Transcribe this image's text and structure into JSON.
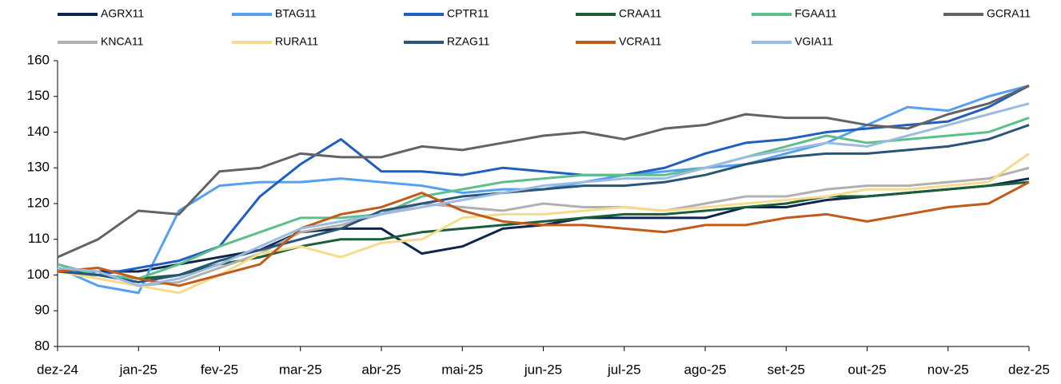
{
  "chart_data": {
    "type": "line",
    "x": [
      0,
      0.5,
      1,
      1.5,
      2,
      2.5,
      3,
      3.5,
      4,
      4.5,
      5,
      5.5,
      6,
      6.5,
      7,
      7.5,
      8,
      8.5,
      9,
      9.5,
      10,
      10.5,
      11,
      11.5,
      12
    ],
    "xlim": [
      0,
      12
    ],
    "xticks": [
      {
        "value": 0,
        "label": "dez-24"
      },
      {
        "value": 1,
        "label": "jan-25"
      },
      {
        "value": 2,
        "label": "fev-25"
      },
      {
        "value": 3,
        "label": "mar-25"
      },
      {
        "value": 4,
        "label": "abr-25"
      },
      {
        "value": 5,
        "label": "mai-25"
      },
      {
        "value": 6,
        "label": "jun-25"
      },
      {
        "value": 7,
        "label": "jul-25"
      },
      {
        "value": 8,
        "label": "ago-25"
      },
      {
        "value": 9,
        "label": "set-25"
      },
      {
        "value": 10,
        "label": "out-25"
      },
      {
        "value": 11,
        "label": "nov-25"
      },
      {
        "value": 12,
        "label": "dez-25"
      }
    ],
    "ylim": [
      80,
      160
    ],
    "yticks": [
      80,
      90,
      100,
      110,
      120,
      130,
      140,
      150,
      160
    ],
    "grid": false,
    "legend": "top",
    "series": [
      {
        "name": "AGRX11",
        "color": "#0d2650",
        "values": [
          101,
          101,
          101,
          103,
          105,
          107,
          112,
          113,
          113,
          106,
          108,
          113,
          114,
          116,
          116,
          116,
          116,
          119,
          119,
          121,
          122,
          123,
          124,
          125,
          127
        ]
      },
      {
        "name": "BTAG11",
        "color": "#55a0f0",
        "values": [
          102,
          97,
          95,
          118,
          125,
          126,
          126,
          127,
          126,
          125,
          123,
          124,
          124,
          126,
          128,
          129,
          130,
          131,
          134,
          137,
          142,
          147,
          146,
          150,
          153
        ]
      },
      {
        "name": "CPTR11",
        "color": "#1f5fbf",
        "values": [
          102,
          100,
          102,
          104,
          108,
          122,
          131,
          138,
          129,
          129,
          128,
          130,
          129,
          128,
          128,
          130,
          134,
          137,
          138,
          140,
          141,
          142,
          143,
          147,
          153
        ]
      },
      {
        "name": "CRAA11",
        "color": "#1a5e3a",
        "values": [
          101,
          100,
          99,
          100,
          103,
          105,
          108,
          110,
          110,
          112,
          113,
          114,
          115,
          116,
          117,
          117,
          118,
          119,
          120,
          122,
          122,
          123,
          124,
          125,
          126
        ]
      },
      {
        "name": "FGAA11",
        "color": "#5dbf8a",
        "values": [
          103,
          100,
          99,
          103,
          108,
          112,
          116,
          116,
          117,
          122,
          124,
          126,
          127,
          128,
          128,
          128,
          130,
          133,
          136,
          139,
          137,
          138,
          139,
          140,
          144
        ]
      },
      {
        "name": "GCRA11",
        "color": "#636363",
        "values": [
          105,
          110,
          118,
          117,
          129,
          130,
          134,
          133,
          133,
          136,
          135,
          137,
          139,
          140,
          138,
          141,
          142,
          145,
          144,
          144,
          142,
          141,
          145,
          148,
          153
        ]
      },
      {
        "name": "KNCA11",
        "color": "#b0b0b0",
        "values": [
          102,
          99,
          97,
          98,
          102,
          106,
          112,
          114,
          117,
          120,
          119,
          118,
          120,
          119,
          119,
          118,
          120,
          122,
          122,
          124,
          125,
          125,
          126,
          127,
          130
        ]
      },
      {
        "name": "RURA11",
        "color": "#f5dc8c",
        "values": [
          101,
          99,
          97,
          95,
          100,
          106,
          108,
          105,
          109,
          110,
          116,
          117,
          117,
          118,
          119,
          118,
          119,
          120,
          121,
          122,
          124,
          124,
          125,
          126,
          134
        ]
      },
      {
        "name": "RZAG11",
        "color": "#2a5478",
        "values": [
          101,
          100,
          98,
          100,
          104,
          107,
          110,
          113,
          118,
          120,
          122,
          123,
          124,
          125,
          125,
          126,
          128,
          131,
          133,
          134,
          134,
          135,
          136,
          138,
          142
        ]
      },
      {
        "name": "VCRA11",
        "color": "#c25a1a",
        "values": [
          101,
          102,
          99,
          97,
          100,
          103,
          113,
          117,
          119,
          123,
          118,
          115,
          114,
          114,
          113,
          112,
          114,
          114,
          116,
          117,
          115,
          117,
          119,
          120,
          126
        ]
      },
      {
        "name": "VGIA11",
        "color": "#9bbbe0",
        "values": [
          102,
          101,
          97,
          99,
          103,
          108,
          113,
          115,
          117,
          119,
          121,
          123,
          125,
          126,
          127,
          127,
          130,
          133,
          135,
          137,
          136,
          139,
          142,
          145,
          148
        ]
      }
    ]
  }
}
